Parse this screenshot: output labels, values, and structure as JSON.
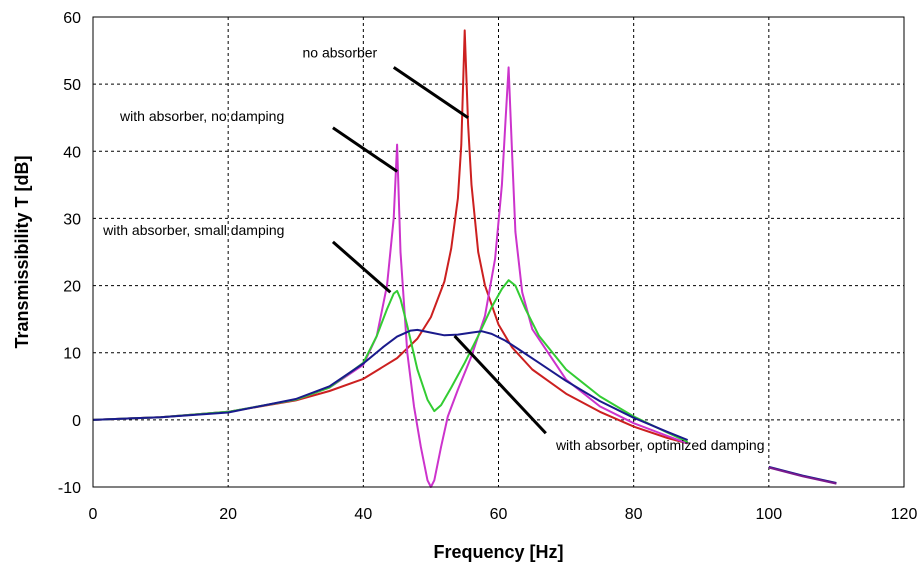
{
  "chart_data": {
    "type": "line",
    "xlabel": "Frequency [Hz]",
    "ylabel": "Transmissibility T [dB]",
    "xlim": [
      0,
      120
    ],
    "ylim": [
      -10,
      60
    ],
    "x_ticks": [
      0,
      20,
      40,
      60,
      80,
      100,
      120
    ],
    "y_ticks": [
      -10,
      0,
      10,
      20,
      30,
      40,
      50,
      60
    ],
    "grid": true,
    "legend": "none",
    "series": [
      {
        "color": "#cc2020",
        "x": [
          0,
          10,
          20,
          30,
          35,
          40,
          45,
          48,
          50,
          52,
          53,
          54,
          54.5,
          55,
          55.5,
          56,
          57,
          58,
          60,
          62,
          65,
          70,
          75,
          80,
          85,
          88
        ],
        "y": [
          0,
          0.4,
          1.2,
          2.9,
          4.3,
          6.1,
          9.2,
          12.1,
          15.3,
          20.6,
          25.5,
          33.0,
          41.0,
          58.0,
          44.0,
          35.0,
          25.0,
          20.0,
          14.2,
          10.8,
          7.5,
          3.9,
          1.2,
          -1.0,
          -2.7,
          -3.5
        ]
      },
      {
        "color": "#cc33cc",
        "x": [
          0,
          10,
          20,
          30,
          35,
          40,
          42,
          43.5,
          44.5,
          45,
          45.5,
          46.5,
          47.5,
          48.5,
          49.5,
          50,
          50.5,
          51.5,
          52.5,
          54,
          56,
          58,
          59.5,
          60.5,
          61,
          61.5,
          62,
          62.5,
          63.5,
          65,
          70,
          75,
          80,
          85,
          88
        ],
        "y": [
          0,
          0.4,
          1.2,
          3.0,
          4.8,
          8.2,
          12.5,
          20.0,
          30.0,
          41.0,
          25.0,
          10.0,
          2.0,
          -4.0,
          -9.0,
          -10.0,
          -9.0,
          -4.0,
          0.5,
          4.5,
          9.5,
          15.5,
          24.0,
          35.0,
          44.0,
          52.5,
          40.0,
          28.0,
          19.0,
          13.5,
          6.0,
          2.0,
          -0.5,
          -2.4,
          -3.5
        ]
      },
      {
        "color": "#33cc33",
        "x": [
          0,
          10,
          20,
          30,
          35,
          40,
          42,
          43.5,
          44.5,
          45,
          45.5,
          46.5,
          48,
          49.5,
          50.5,
          51.5,
          53,
          55,
          57,
          59,
          60.5,
          61.5,
          62.5,
          64,
          66,
          70,
          75,
          80,
          85,
          88
        ],
        "y": [
          0,
          0.4,
          1.2,
          3.0,
          4.8,
          8.5,
          12.5,
          16.5,
          18.8,
          19.2,
          18.0,
          14.0,
          7.5,
          3.0,
          1.3,
          2.2,
          4.8,
          8.5,
          12.5,
          16.8,
          19.5,
          20.8,
          20.0,
          16.5,
          12.5,
          7.5,
          3.5,
          0.5,
          -1.9,
          -3.3
        ]
      },
      {
        "color": "#1a1a8c",
        "x": [
          0,
          10,
          20,
          30,
          35,
          40,
          43,
          45,
          47,
          48,
          50,
          52,
          54,
          56,
          57.5,
          59,
          61,
          63,
          66,
          70,
          75,
          80,
          85,
          88
        ],
        "y": [
          0,
          0.4,
          1.1,
          3.1,
          5.0,
          8.4,
          10.9,
          12.4,
          13.3,
          13.4,
          13.0,
          12.6,
          12.7,
          13.0,
          13.2,
          12.8,
          11.8,
          10.5,
          8.5,
          5.8,
          2.8,
          0.3,
          -1.8,
          -3.0
        ]
      },
      {
        "color": "#1a1a8c",
        "x": [
          100,
          105,
          110
        ],
        "y": [
          -7.0,
          -8.3,
          -9.4
        ]
      },
      {
        "color": "#7a1a8c",
        "x": [
          100,
          105,
          110
        ],
        "y": [
          -7.1,
          -8.4,
          -9.5
        ]
      }
    ],
    "annotations": [
      {
        "text": "no absorber",
        "x": 31,
        "y": 54,
        "anchor": "start",
        "arrow_from": [
          44.5,
          52.5
        ],
        "arrow_to": [
          55.5,
          45.0
        ]
      },
      {
        "text": "with absorber, no damping",
        "x": 4,
        "y": 44.5,
        "anchor": "start",
        "arrow_from": [
          35.5,
          43.5
        ],
        "arrow_to": [
          45.0,
          37.0
        ]
      },
      {
        "text": "with absorber, small damping",
        "x": 1.5,
        "y": 27.5,
        "anchor": "start",
        "arrow_from": [
          35.5,
          26.5
        ],
        "arrow_to": [
          44.0,
          19.0
        ]
      },
      {
        "text": "with absorber, optimized damping",
        "x": 68.5,
        "y": -4.5,
        "anchor": "start",
        "arrow_from": [
          53.5,
          12.5
        ],
        "arrow_to": [
          67.0,
          -2.0
        ]
      }
    ]
  }
}
